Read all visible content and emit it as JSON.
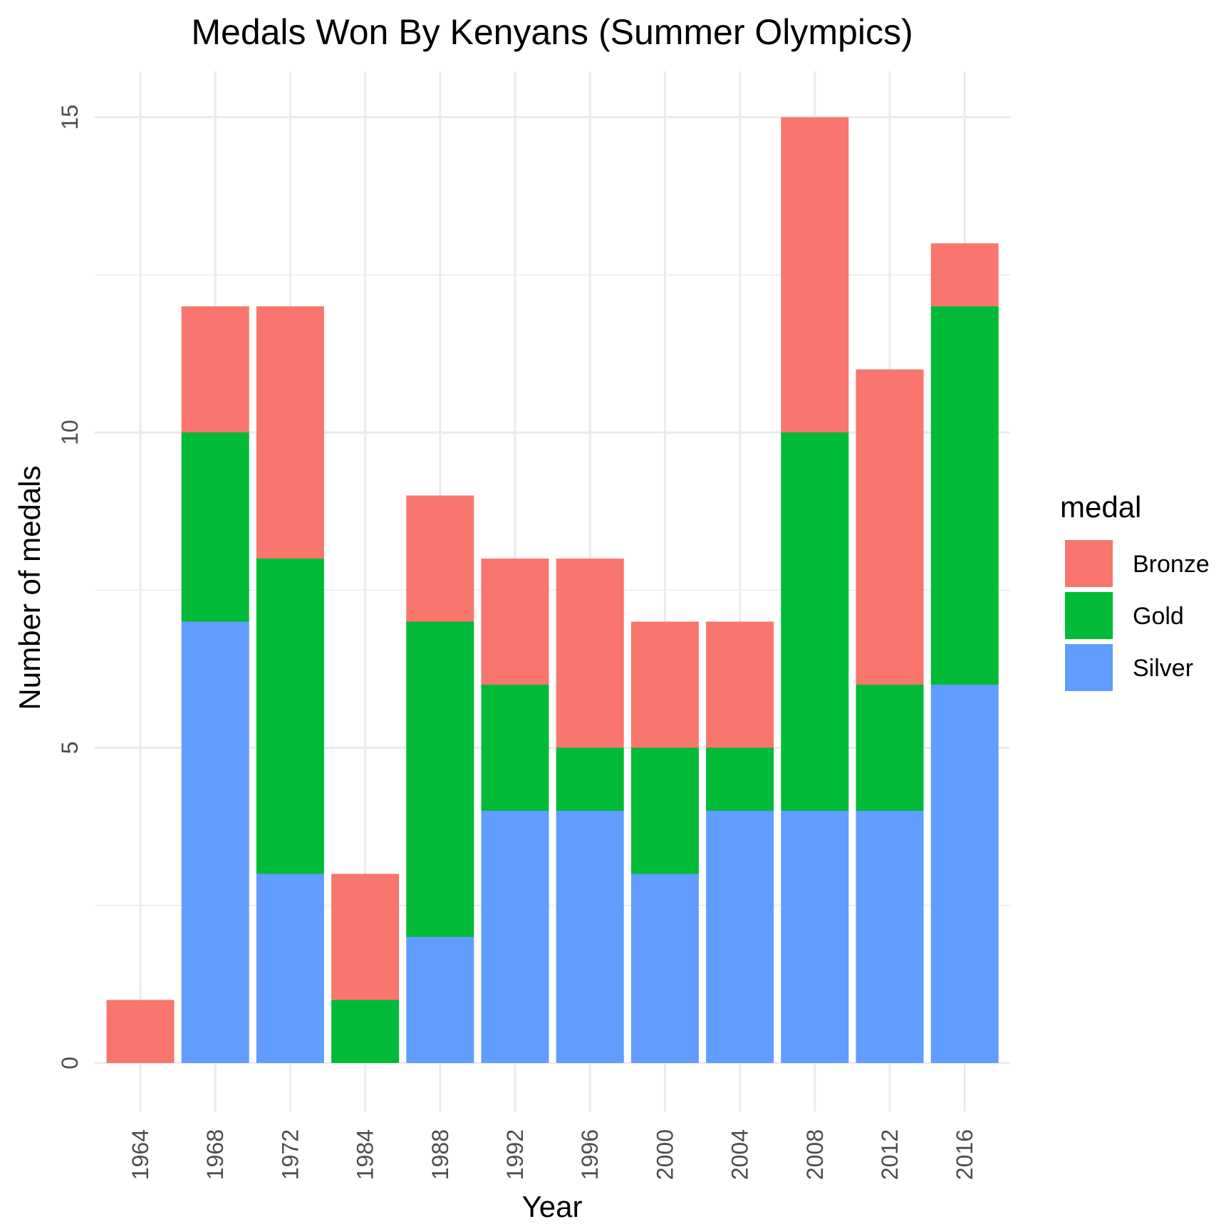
{
  "chart_data": {
    "type": "bar",
    "stacked": true,
    "title": "Medals Won By Kenyans (Summer Olympics)",
    "xlabel": "Year",
    "ylabel": "Number of medals",
    "categories": [
      "1964",
      "1968",
      "1972",
      "1984",
      "1988",
      "1992",
      "1996",
      "2000",
      "2004",
      "2008",
      "2012",
      "2016"
    ],
    "series": [
      {
        "name": "Silver",
        "color": "#619CFF",
        "values": [
          0,
          7,
          3,
          0,
          2,
          4,
          4,
          3,
          4,
          4,
          4,
          6
        ]
      },
      {
        "name": "Gold",
        "color": "#00BA38",
        "values": [
          0,
          3,
          5,
          1,
          5,
          2,
          1,
          2,
          1,
          6,
          2,
          6
        ]
      },
      {
        "name": "Bronze",
        "color": "#F8766D",
        "values": [
          1,
          2,
          4,
          2,
          2,
          2,
          3,
          2,
          2,
          5,
          5,
          1
        ]
      }
    ],
    "ylim": [
      0,
      15.5
    ],
    "yticks": [
      "0",
      "5",
      "10",
      "15"
    ],
    "legend": {
      "title": "medal",
      "placement": "right",
      "entries": [
        "Bronze",
        "Gold",
        "Silver"
      ]
    },
    "grid": true
  }
}
